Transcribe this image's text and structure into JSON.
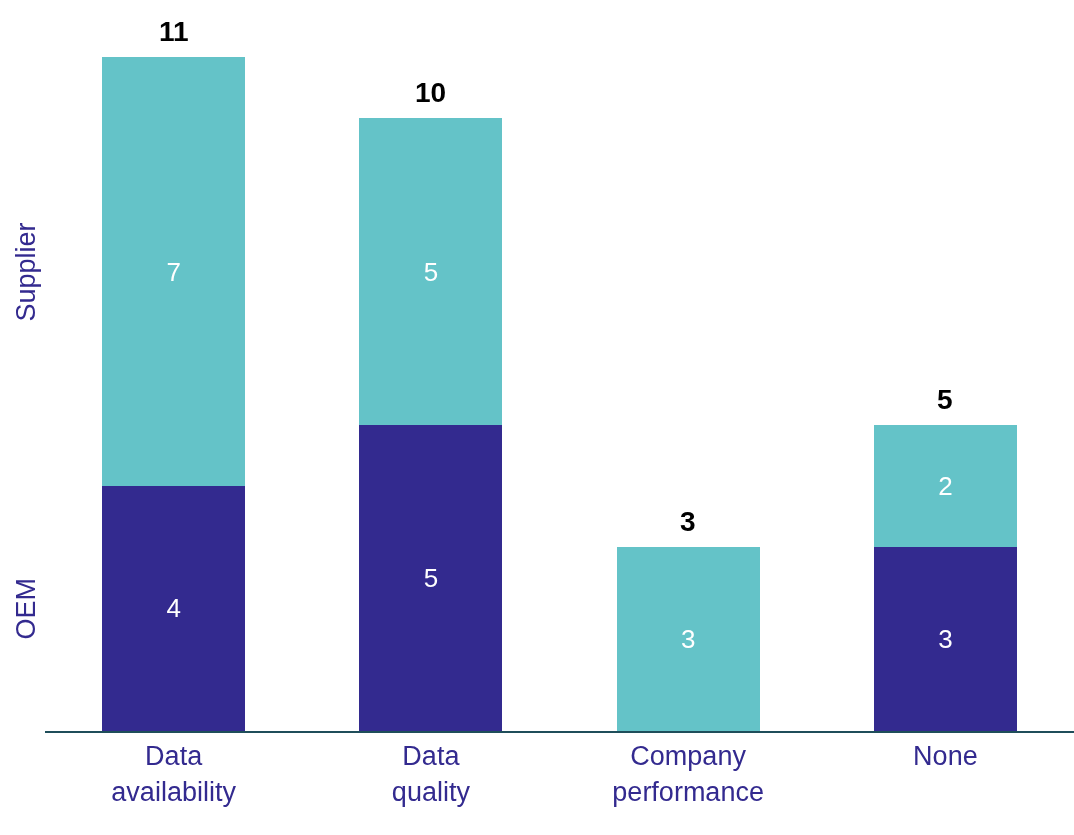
{
  "chart_data": {
    "type": "bar",
    "stacked": true,
    "categories": [
      "Data availability",
      "Data quality",
      "Company performance",
      "None"
    ],
    "series": [
      {
        "name": "OEM",
        "color": "#332a8f",
        "values": [
          4,
          5,
          0,
          3
        ],
        "value_labels": [
          "4",
          "5",
          null,
          "3"
        ]
      },
      {
        "name": "Supplier",
        "color": "#64c3c8",
        "values": [
          7,
          5,
          3,
          2
        ],
        "value_labels": [
          "7",
          "5",
          "3",
          "2"
        ]
      }
    ],
    "totals": [
      "11",
      "10",
      "3",
      "5"
    ],
    "legend": false
  }
}
